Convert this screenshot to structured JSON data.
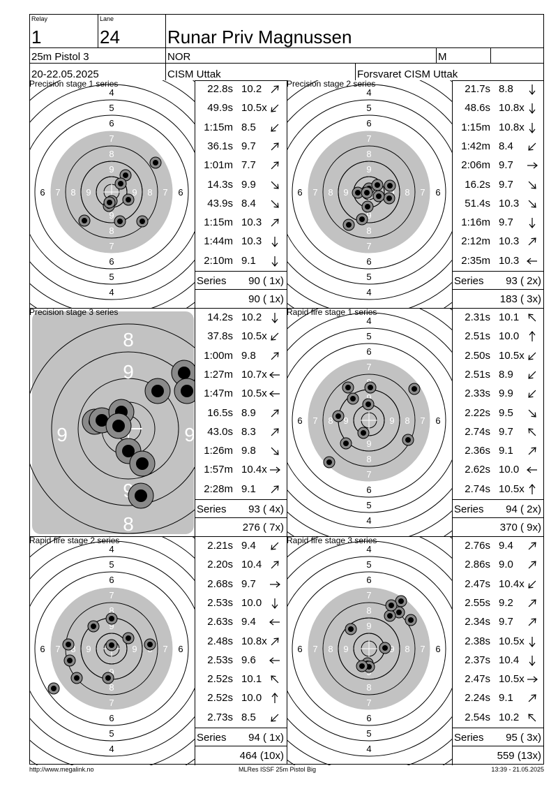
{
  "header": {
    "relay_label": "Relay",
    "relay_value": "1",
    "lane_label": "Lane",
    "lane_value": "24",
    "athlete_name": "Runar Priv Magnussen",
    "event": "25m Pistol 3",
    "nation": "NOR",
    "gender": "M",
    "date": "20-22.05.2025",
    "competition": "CISM Uttak",
    "club": "Forsvaret CISM Uttak"
  },
  "series": [
    {
      "title": "Precision stage 1 series",
      "kind": "normal",
      "rings": [
        "4",
        "5",
        "6",
        "7",
        "8",
        "9"
      ],
      "shots": [
        {
          "time": "22.8s",
          "value": "10.2",
          "arrow": "ne"
        },
        {
          "time": "49.9s",
          "value": "10.5x",
          "arrow": "sw"
        },
        {
          "time": "1:15m",
          "value": "8.5",
          "arrow": "sw"
        },
        {
          "time": "36.1s",
          "value": "9.7",
          "arrow": "ne"
        },
        {
          "time": "1:01m",
          "value": "7.7",
          "arrow": "ne"
        },
        {
          "time": "14.3s",
          "value": "9.9",
          "arrow": "se"
        },
        {
          "time": "43.9s",
          "value": "8.4",
          "arrow": "se"
        },
        {
          "time": "1:15m",
          "value": "10.3",
          "arrow": "ne"
        },
        {
          "time": "1:44m",
          "value": "10.3",
          "arrow": "s"
        },
        {
          "time": "2:10m",
          "value": "9.1",
          "arrow": "s"
        }
      ],
      "series_label": "Series",
      "series_score": "90 ( 1x)",
      "total": "90 ( 1x)"
    },
    {
      "title": "Precision stage 2 series",
      "kind": "normal",
      "rings": [
        "4",
        "5",
        "6",
        "7",
        "8",
        "9"
      ],
      "shots": [
        {
          "time": "21.7s",
          "value": "8.8",
          "arrow": "s"
        },
        {
          "time": "48.6s",
          "value": "10.8x",
          "arrow": "s"
        },
        {
          "time": "1:15m",
          "value": "10.8x",
          "arrow": "s"
        },
        {
          "time": "1:42m",
          "value": "8.4",
          "arrow": "sw"
        },
        {
          "time": "2:06m",
          "value": "9.7",
          "arrow": "e"
        },
        {
          "time": "16.2s",
          "value": "9.7",
          "arrow": "se"
        },
        {
          "time": "51.4s",
          "value": "10.3",
          "arrow": "se"
        },
        {
          "time": "1:16m",
          "value": "9.7",
          "arrow": "s"
        },
        {
          "time": "2:12m",
          "value": "10.3",
          "arrow": "ne"
        },
        {
          "time": "2:35m",
          "value": "10.3",
          "arrow": "w"
        }
      ],
      "series_label": "Series",
      "series_score": "93 ( 2x)",
      "total": "183 ( 3x)"
    },
    {
      "title": "Precision stage 3 series",
      "kind": "zoom",
      "rings": [
        "8",
        "9"
      ],
      "shots": [
        {
          "time": "14.2s",
          "value": "10.2",
          "arrow": "s"
        },
        {
          "time": "37.8s",
          "value": "10.5x",
          "arrow": "sw"
        },
        {
          "time": "1:00m",
          "value": "9.8",
          "arrow": "ne"
        },
        {
          "time": "1:27m",
          "value": "10.7x",
          "arrow": "w"
        },
        {
          "time": "1:47m",
          "value": "10.5x",
          "arrow": "w"
        },
        {
          "time": "16.5s",
          "value": "8.9",
          "arrow": "ne"
        },
        {
          "time": "43.0s",
          "value": "8.3",
          "arrow": "ne"
        },
        {
          "time": "1:26m",
          "value": "9.8",
          "arrow": "se"
        },
        {
          "time": "1:57m",
          "value": "10.4x",
          "arrow": "e"
        },
        {
          "time": "2:28m",
          "value": "9.1",
          "arrow": "ne"
        }
      ],
      "series_label": "Series",
      "series_score": "93 ( 4x)",
      "total": "276 ( 7x)"
    },
    {
      "title": "Rapid fire stage 1 series",
      "kind": "normal",
      "rings": [
        "4",
        "5",
        "6",
        "7",
        "8",
        "9"
      ],
      "shots": [
        {
          "time": "2.31s",
          "value": "10.1",
          "arrow": "nw"
        },
        {
          "time": "2.51s",
          "value": "10.0",
          "arrow": "n"
        },
        {
          "time": "2.50s",
          "value": "10.5x",
          "arrow": "sw"
        },
        {
          "time": "2.51s",
          "value": "8.9",
          "arrow": "sw"
        },
        {
          "time": "2.33s",
          "value": "9.9",
          "arrow": "sw"
        },
        {
          "time": "2.22s",
          "value": "9.5",
          "arrow": "se"
        },
        {
          "time": "2.74s",
          "value": "9.7",
          "arrow": "nw"
        },
        {
          "time": "2.36s",
          "value": "9.1",
          "arrow": "ne"
        },
        {
          "time": "2.62s",
          "value": "10.0",
          "arrow": "w"
        },
        {
          "time": "2.74s",
          "value": "10.5x",
          "arrow": "n"
        }
      ],
      "series_label": "Series",
      "series_score": "94 ( 2x)",
      "total": "370 ( 9x)"
    },
    {
      "title": "Rapid fire stage 2 series",
      "kind": "normal",
      "rings": [
        "4",
        "5",
        "6",
        "7",
        "8",
        "9"
      ],
      "shots": [
        {
          "time": "2.21s",
          "value": "9.4",
          "arrow": "sw"
        },
        {
          "time": "2.20s",
          "value": "10.4",
          "arrow": "ne"
        },
        {
          "time": "2.68s",
          "value": "9.7",
          "arrow": "e"
        },
        {
          "time": "2.53s",
          "value": "10.0",
          "arrow": "s"
        },
        {
          "time": "2.63s",
          "value": "9.4",
          "arrow": "w"
        },
        {
          "time": "2.48s",
          "value": "10.8x",
          "arrow": "ne"
        },
        {
          "time": "2.53s",
          "value": "9.6",
          "arrow": "w"
        },
        {
          "time": "2.52s",
          "value": "10.1",
          "arrow": "nw"
        },
        {
          "time": "2.52s",
          "value": "10.0",
          "arrow": "n"
        },
        {
          "time": "2.73s",
          "value": "8.5",
          "arrow": "sw"
        }
      ],
      "series_label": "Series",
      "series_score": "94 ( 1x)",
      "total": "464 (10x)"
    },
    {
      "title": "Rapid fire stage 3 series",
      "kind": "normal",
      "rings": [
        "4",
        "5",
        "6",
        "7",
        "8",
        "9"
      ],
      "shots": [
        {
          "time": "2.76s",
          "value": "9.4",
          "arrow": "ne"
        },
        {
          "time": "2.86s",
          "value": "9.0",
          "arrow": "ne"
        },
        {
          "time": "2.47s",
          "value": "10.4x",
          "arrow": "sw"
        },
        {
          "time": "2.55s",
          "value": "9.2",
          "arrow": "ne"
        },
        {
          "time": "2.34s",
          "value": "9.7",
          "arrow": "ne"
        },
        {
          "time": "2.38s",
          "value": "10.5x",
          "arrow": "s"
        },
        {
          "time": "2.37s",
          "value": "10.4",
          "arrow": "s"
        },
        {
          "time": "2.47s",
          "value": "10.5x",
          "arrow": "e"
        },
        {
          "time": "2.24s",
          "value": "9.1",
          "arrow": "ne"
        },
        {
          "time": "2.54s",
          "value": "10.2",
          "arrow": "nw"
        }
      ],
      "series_label": "Series",
      "series_score": "95 ( 3x)",
      "total": "559 (13x)"
    }
  ],
  "footer": {
    "url": "http://www.megalink.no",
    "software": "MLRes ISSF 25m Pistol Big",
    "printed": "13:39 - 21.05.2025"
  }
}
